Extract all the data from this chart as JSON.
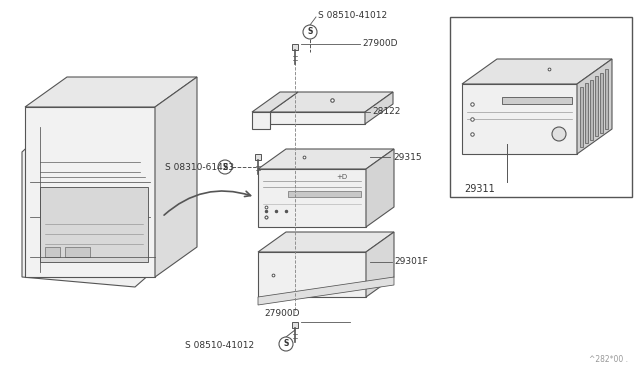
{
  "background_color": "#ffffff",
  "line_color": "#555555",
  "text_color": "#333333",
  "fig_width": 6.4,
  "fig_height": 3.72,
  "dpi": 100,
  "watermark": "^282*00 .",
  "label_08510_top": "S 08510-41012",
  "label_27900D_top": "27900D",
  "label_28122": "28122",
  "label_08310": "S 08310-61423",
  "label_29315": "29315",
  "label_29301F": "29301F",
  "label_27900D_bot": "27900D",
  "label_08510_bot": "S 08510-41012",
  "label_29311": "29311"
}
